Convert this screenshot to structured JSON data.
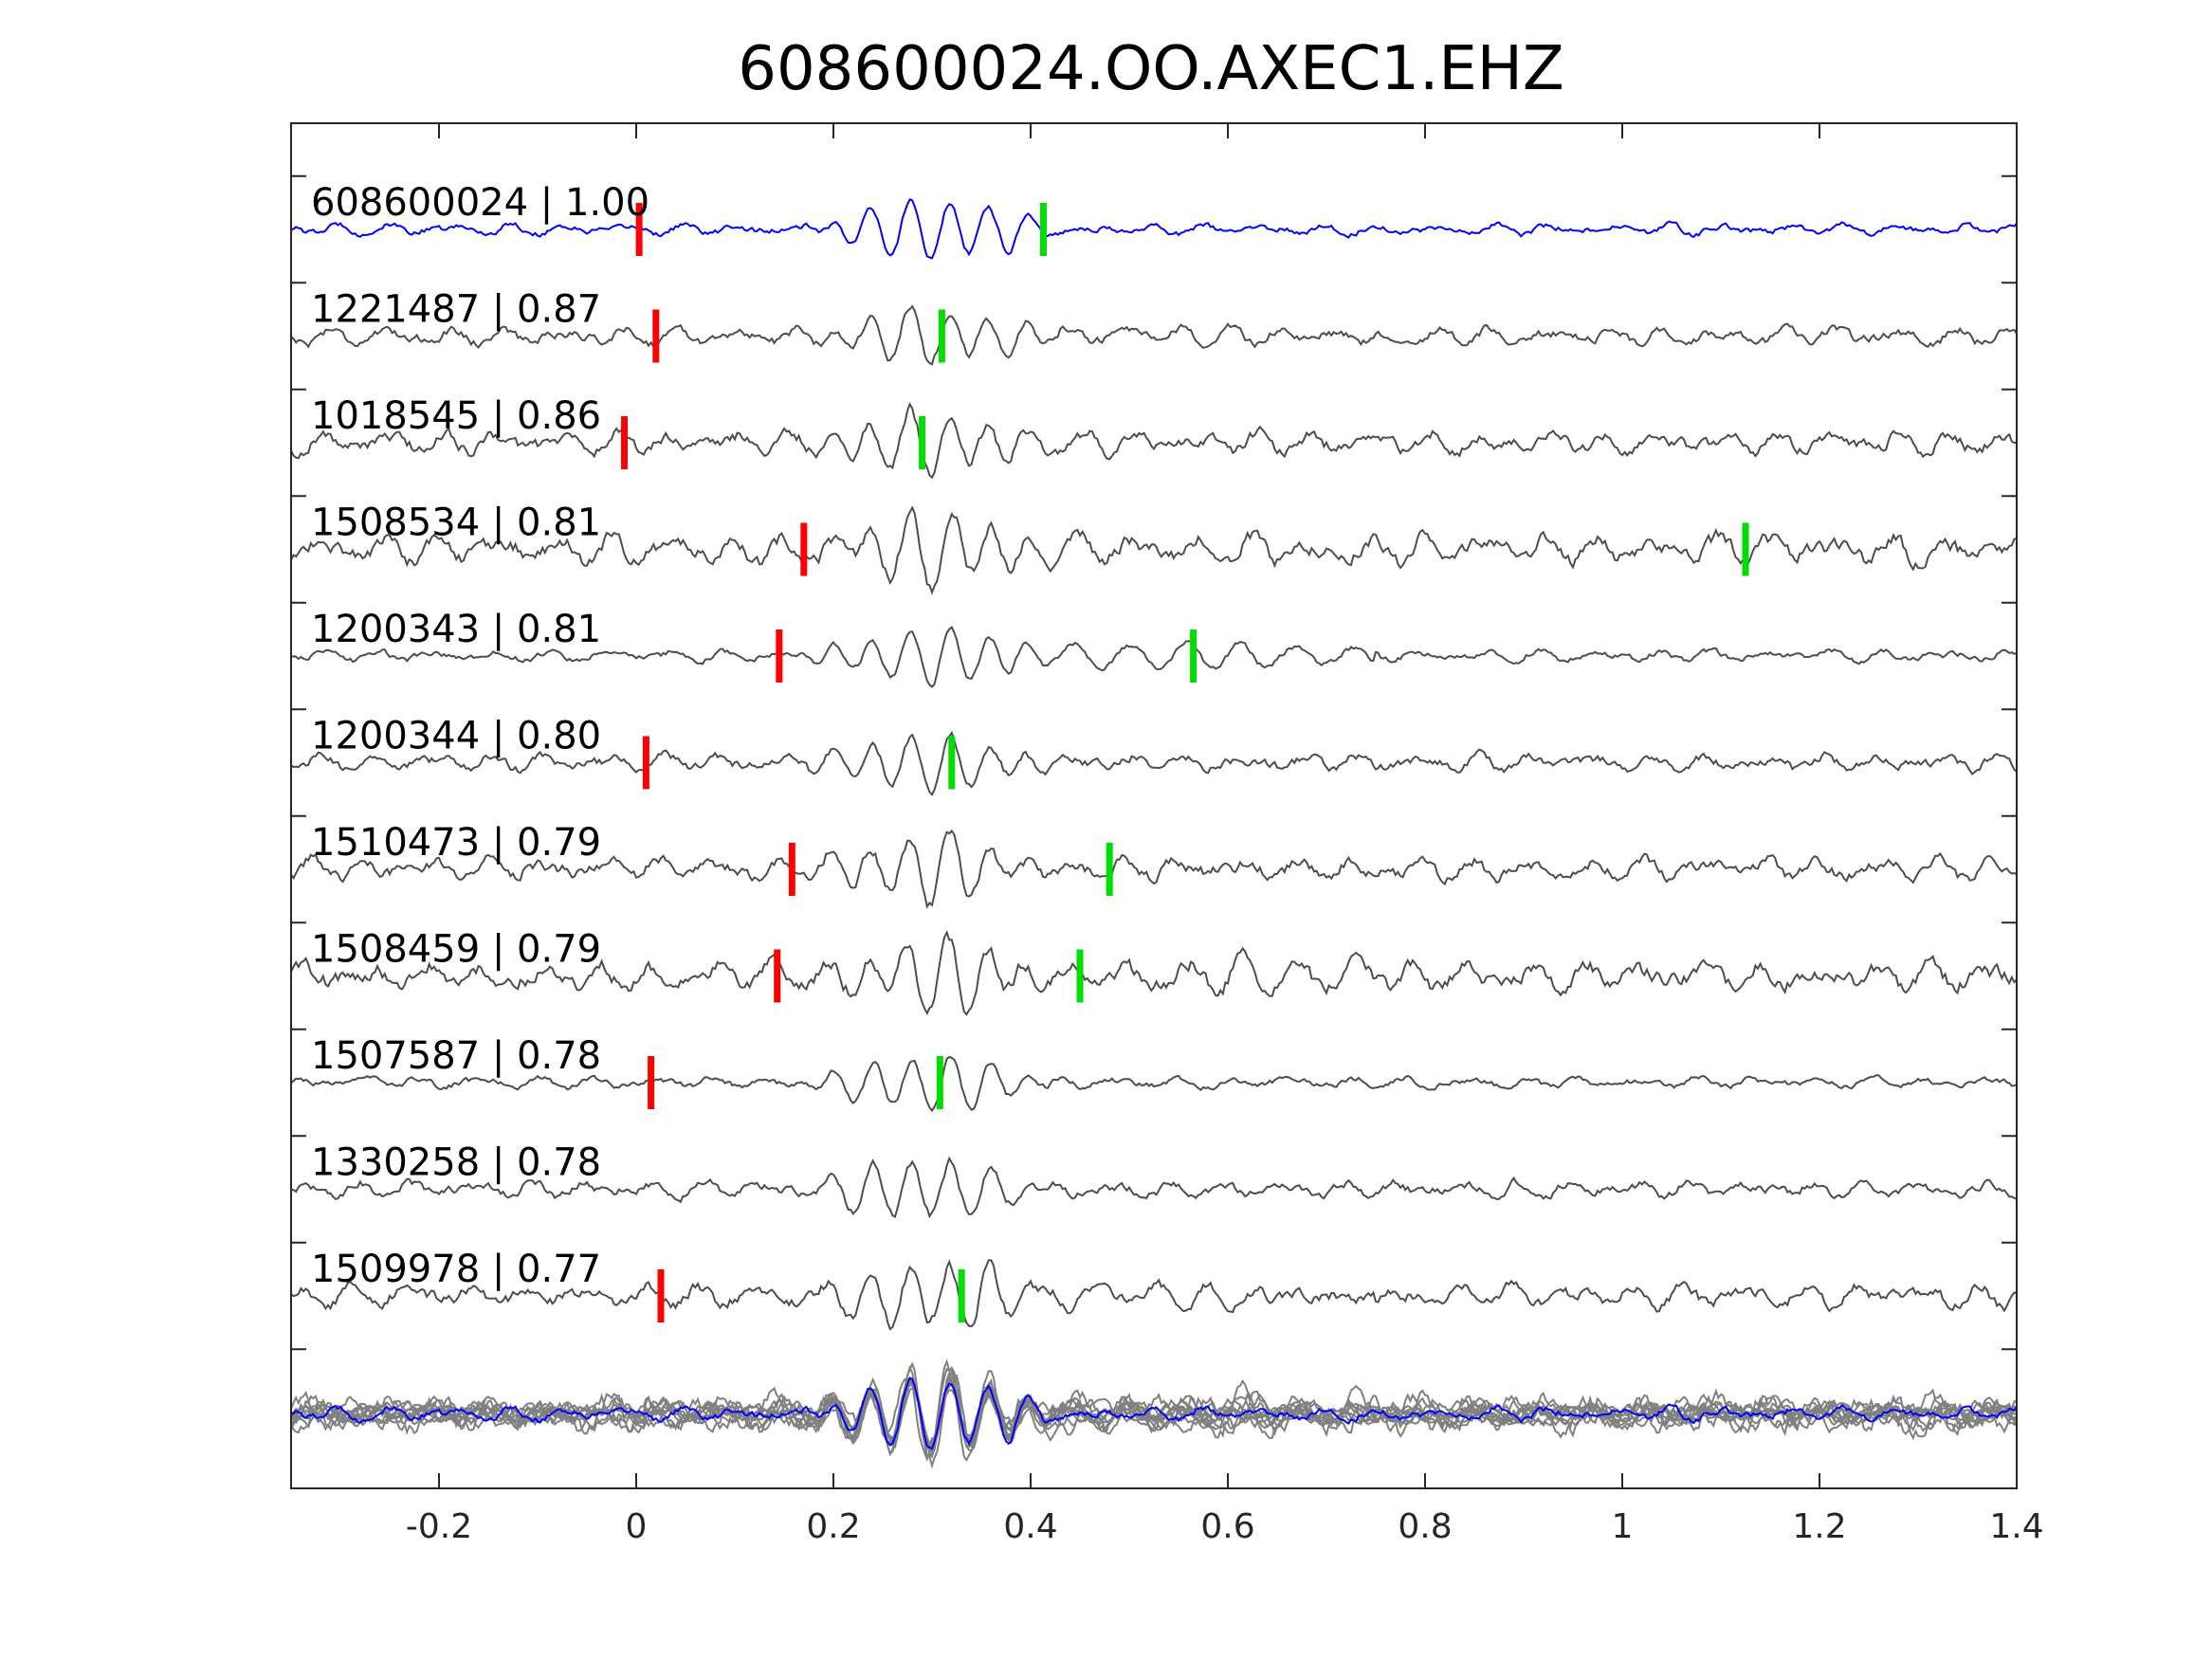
{
  "chart_data": {
    "type": "line",
    "title": "608600024.OO.AXEC1.EHZ",
    "xlabel": "",
    "ylabel": "",
    "xlim": [
      -0.35,
      1.4
    ],
    "xticks": [
      -0.2,
      0,
      0.2,
      0.4,
      0.6,
      0.8,
      1,
      1.2,
      1.4
    ],
    "xtick_labels": [
      "-0.2",
      "0",
      "0.2",
      "0.4",
      "0.6",
      "0.8",
      "1",
      "1.2",
      "1.4"
    ],
    "grid": false,
    "legend": "none",
    "colors": {
      "template": "#0000ff",
      "match": "#4d4d4d",
      "stack": "#808080",
      "p_pick": "#ff0000",
      "s_pick": "#00dd00",
      "axes": "#262626"
    },
    "traces": [
      {
        "label": "608600024 | 1.00",
        "id": "608600024",
        "cc": 1.0,
        "p_pick": 0.003,
        "s_pick": 0.413,
        "template": true
      },
      {
        "label": "1221487 | 0.87",
        "id": "1221487",
        "cc": 0.87,
        "p_pick": 0.02,
        "s_pick": 0.31
      },
      {
        "label": "1018545 | 0.86",
        "id": "1018545",
        "cc": 0.86,
        "p_pick": -0.012,
        "s_pick": 0.29
      },
      {
        "label": "1508534 | 0.81",
        "id": "1508534",
        "cc": 0.81,
        "p_pick": 0.17,
        "s_pick": 1.125
      },
      {
        "label": "1200343 | 0.81",
        "id": "1200343",
        "cc": 0.81,
        "p_pick": 0.145,
        "s_pick": 0.565
      },
      {
        "label": "1200344 | 0.80",
        "id": "1200344",
        "cc": 0.8,
        "p_pick": 0.01,
        "s_pick": 0.32
      },
      {
        "label": "1510473 | 0.79",
        "id": "1510473",
        "cc": 0.79,
        "p_pick": 0.158,
        "s_pick": 0.48
      },
      {
        "label": "1508459 | 0.79",
        "id": "1508459",
        "cc": 0.79,
        "p_pick": 0.143,
        "s_pick": 0.45
      },
      {
        "label": "1507587 | 0.78",
        "id": "1507587",
        "cc": 0.78,
        "p_pick": 0.015,
        "s_pick": 0.308
      },
      {
        "label": "1330258 | 0.78",
        "id": "1330258",
        "cc": 0.78,
        "p_pick": null,
        "s_pick": null
      },
      {
        "label": "1509978 | 0.77",
        "id": "1509978",
        "cc": 0.77,
        "p_pick": 0.025,
        "s_pick": 0.33
      }
    ]
  }
}
